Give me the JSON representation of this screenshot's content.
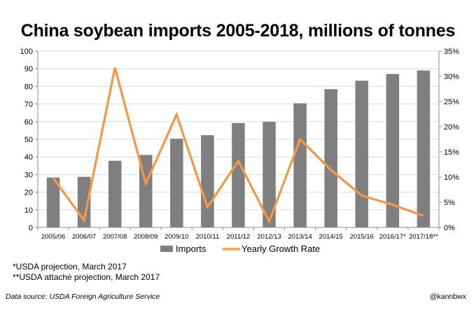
{
  "title": "China soybean imports 2005-2018, millions of tonnes",
  "footnotes": [
    "*USDA projection, March 2017",
    "**USDA attaché projection, March 2017"
  ],
  "source": "Data source: USDA Foreign Agriculture Service",
  "credit": "@kannbwx",
  "colors": {
    "bars": "#7f7f7f",
    "line": "#f79646",
    "grid": "#d9d9d9",
    "axis": "#8c8c8c"
  },
  "chart_data": {
    "type": "bar",
    "categories": [
      "2005/06",
      "2006/07",
      "2007/08",
      "2008/09",
      "2009/10",
      "2010/11",
      "2011/12",
      "2012/13",
      "2013/14",
      "2014/15",
      "2015/16",
      "2016/17*",
      "2017/18**"
    ],
    "series": [
      {
        "name": "Imports",
        "type": "bar",
        "axis": "left",
        "values": [
          28.3,
          28.7,
          37.8,
          41.1,
          50.3,
          52.3,
          59.2,
          59.9,
          70.4,
          78.4,
          83.2,
          87.0,
          89.0
        ]
      },
      {
        "name": "Yearly Growth Rate",
        "type": "line",
        "axis": "right",
        "values": [
          0.098,
          0.014,
          0.317,
          0.087,
          0.224,
          0.04,
          0.132,
          0.012,
          0.175,
          0.114,
          0.063,
          0.045,
          0.023
        ]
      }
    ],
    "yleft": {
      "min": 0,
      "max": 100,
      "step": 10
    },
    "yright": {
      "min": 0,
      "max": 0.35,
      "step": 0.05
    },
    "yright_ticks": [
      "0%",
      "5%",
      "10%",
      "15%",
      "20%",
      "25%",
      "30%",
      "35%"
    ],
    "grid": true,
    "legend": "bottom"
  }
}
